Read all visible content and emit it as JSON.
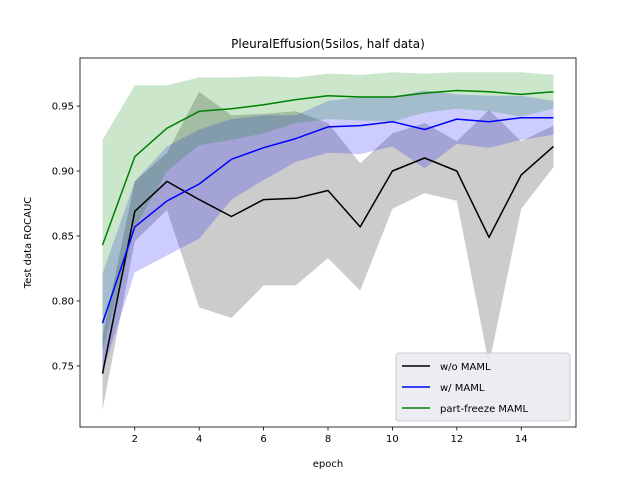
{
  "chart_data": {
    "type": "line",
    "title": "PleuralEffusion(5silos, half data)",
    "xlabel": "epoch",
    "ylabel": "Test data ROCAUC",
    "xlim": [
      0.3,
      15.7
    ],
    "ylim": [
      0.703,
      0.987
    ],
    "xticks": [
      2,
      4,
      6,
      8,
      10,
      12,
      14
    ],
    "yticks": [
      0.75,
      0.8,
      0.85,
      0.9,
      0.95
    ],
    "x": [
      1,
      2,
      3,
      4,
      5,
      6,
      7,
      8,
      9,
      10,
      11,
      12,
      13,
      14,
      15
    ],
    "grid": false,
    "legend_position": "lower-right",
    "series": [
      {
        "name": "w/o MAML",
        "color": "#000000",
        "band_color": "#000000",
        "band_opacity": 0.2,
        "values": [
          0.744,
          0.869,
          0.892,
          0.878,
          0.865,
          0.878,
          0.879,
          0.885,
          0.857,
          0.9,
          0.91,
          0.9,
          0.849,
          0.897,
          0.919
        ],
        "lower": [
          0.716,
          0.846,
          0.87,
          0.795,
          0.787,
          0.812,
          0.812,
          0.833,
          0.808,
          0.871,
          0.883,
          0.877,
          0.751,
          0.871,
          0.903
        ],
        "upper": [
          0.773,
          0.892,
          0.914,
          0.961,
          0.943,
          0.944,
          0.946,
          0.937,
          0.906,
          0.929,
          0.937,
          0.923,
          0.947,
          0.923,
          0.935
        ]
      },
      {
        "name": "w/ MAML",
        "color": "#0000ff",
        "band_color": "#0000ff",
        "band_opacity": 0.2,
        "values": [
          0.783,
          0.857,
          0.877,
          0.89,
          0.909,
          0.918,
          0.925,
          0.934,
          0.935,
          0.938,
          0.932,
          0.94,
          0.938,
          0.941,
          0.941
        ],
        "lower": [
          0.745,
          0.822,
          0.835,
          0.848,
          0.878,
          0.893,
          0.907,
          0.914,
          0.913,
          0.919,
          0.902,
          0.921,
          0.918,
          0.924,
          0.928
        ],
        "upper": [
          0.821,
          0.892,
          0.919,
          0.932,
          0.94,
          0.943,
          0.943,
          0.954,
          0.957,
          0.957,
          0.962,
          0.959,
          0.958,
          0.958,
          0.954
        ]
      },
      {
        "name": "part-freeze MAML",
        "color": "#008000",
        "band_color": "#008000",
        "band_opacity": 0.2,
        "values": [
          0.843,
          0.911,
          0.933,
          0.946,
          0.948,
          0.951,
          0.955,
          0.958,
          0.957,
          0.957,
          0.96,
          0.962,
          0.961,
          0.959,
          0.961
        ],
        "lower": [
          0.762,
          0.856,
          0.9,
          0.92,
          0.924,
          0.929,
          0.937,
          0.94,
          0.939,
          0.938,
          0.945,
          0.948,
          0.946,
          0.942,
          0.948
        ],
        "upper": [
          0.924,
          0.966,
          0.966,
          0.972,
          0.972,
          0.973,
          0.972,
          0.975,
          0.974,
          0.976,
          0.975,
          0.976,
          0.976,
          0.976,
          0.974
        ]
      }
    ]
  }
}
